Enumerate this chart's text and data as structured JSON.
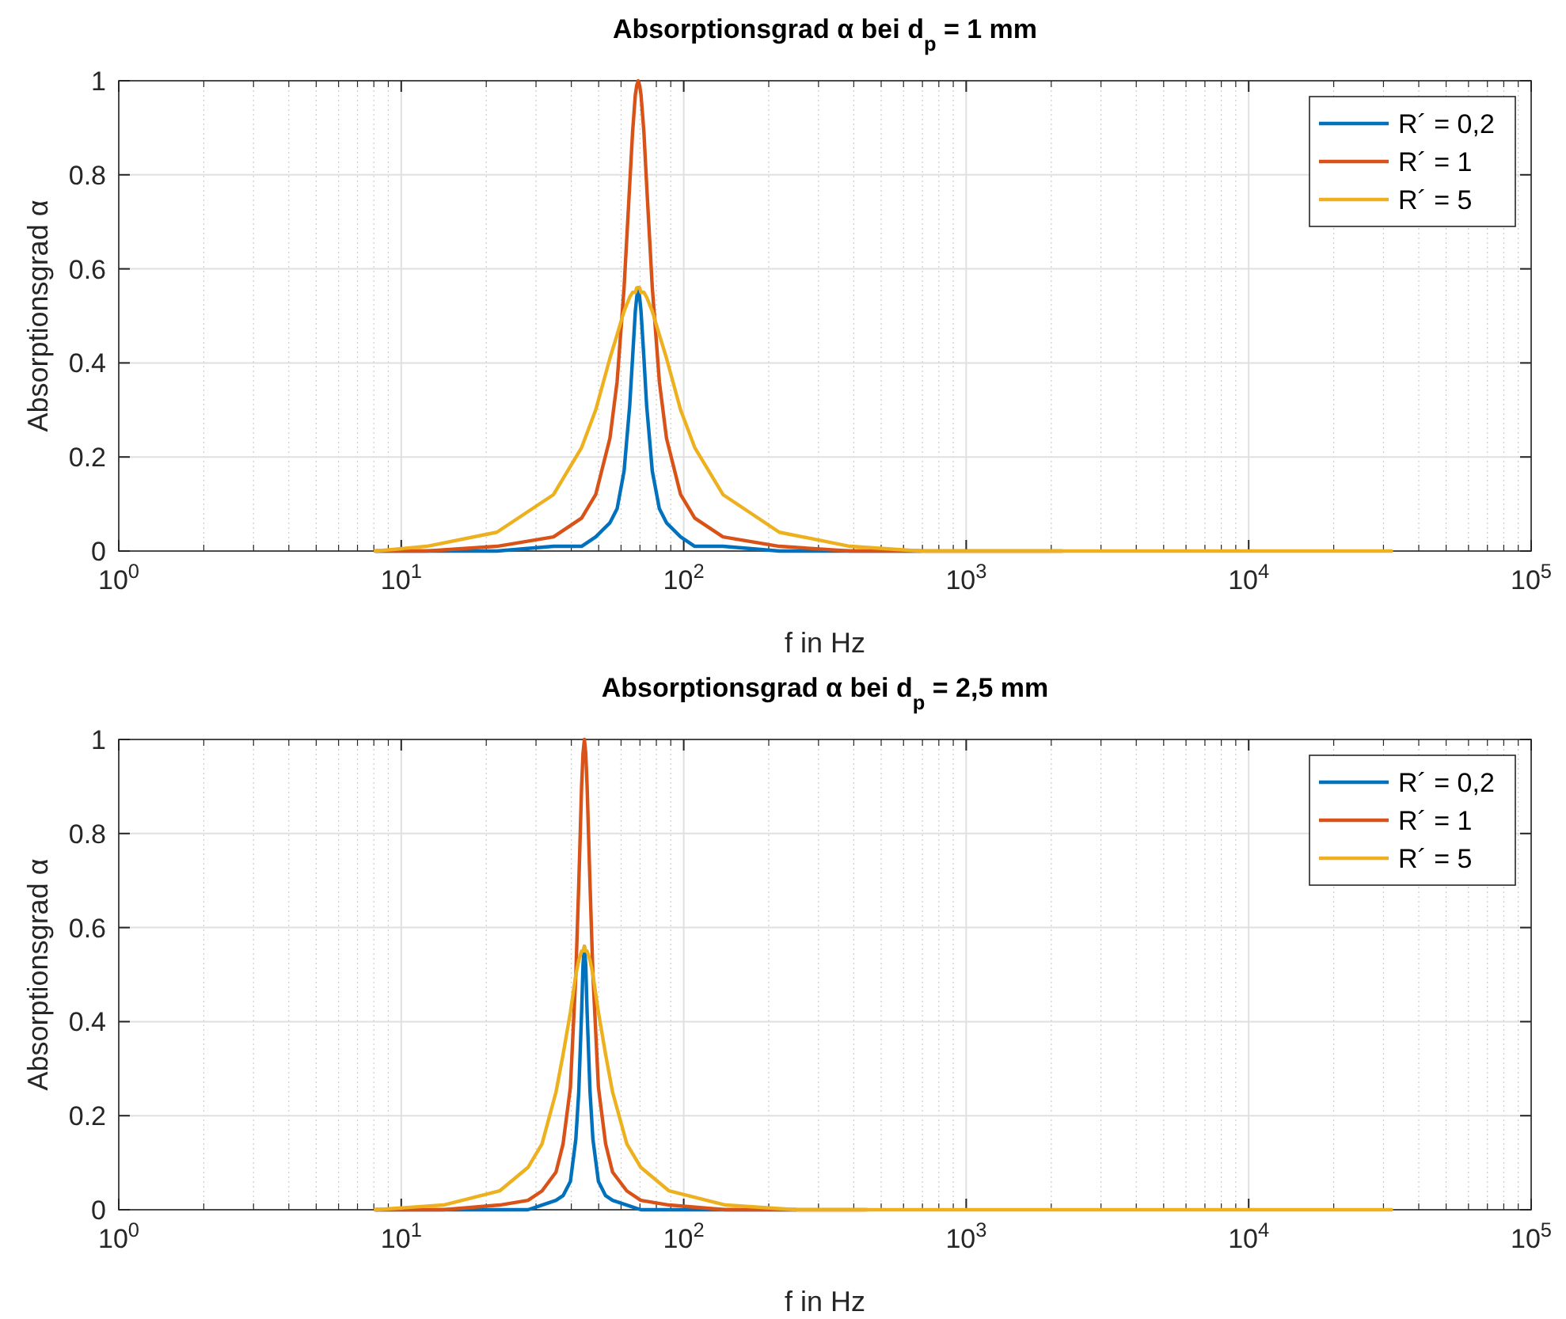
{
  "chart_data": [
    {
      "type": "line",
      "title": "Absorptionsgrad α bei d$_{p}$ = 1 mm",
      "xlabel": "f in Hz",
      "ylabel": "Absorptionsgrad α",
      "x": [
        8.1,
        12.3,
        21.8,
        34.6,
        43.5,
        48.8,
        54.8,
        58.1,
        61.5,
        64.4,
        65.9,
        67.4,
        68.2,
        69,
        69.8,
        70.6,
        72.3,
        73.9,
        77.4,
        82.0,
        86.9,
        97.5,
        109.4,
        137.7,
        218,
        388,
        690,
        2182,
        6900,
        32000
      ],
      "series": [
        {
          "name": "R´ = 0,2",
          "color": "#0072bd",
          "values": [
            0,
            0,
            0,
            0.01,
            0.01,
            0.03,
            0.06,
            0.09,
            0.17,
            0.31,
            0.41,
            0.51,
            0.54,
            0.56,
            0.54,
            0.51,
            0.41,
            0.31,
            0.17,
            0.09,
            0.06,
            0.03,
            0.01,
            0.01,
            0,
            0,
            0,
            null,
            null,
            null
          ]
        },
        {
          "name": "R´ = 1",
          "color": "#d95319",
          "values": [
            0,
            0,
            0.01,
            0.03,
            0.07,
            0.12,
            0.24,
            0.36,
            0.56,
            0.78,
            0.89,
            0.97,
            0.99,
            1,
            0.99,
            0.97,
            0.89,
            0.78,
            0.56,
            0.36,
            0.24,
            0.12,
            0.07,
            0.03,
            0.01,
            0,
            0,
            0,
            null,
            null
          ]
        },
        {
          "name": "R´ = 5",
          "color": "#edb120",
          "values": [
            0,
            0.01,
            0.04,
            0.12,
            0.22,
            0.3,
            0.41,
            0.46,
            0.51,
            0.54,
            0.55,
            0.55,
            0.56,
            0.56,
            0.56,
            0.55,
            0.55,
            0.54,
            0.51,
            0.46,
            0.41,
            0.3,
            0.22,
            0.12,
            0.04,
            0.01,
            0,
            0,
            0,
            0
          ]
        }
      ],
      "log": "x",
      "xlim": [
        1,
        100000
      ],
      "xticks": [
        {
          "value": 1,
          "label": "10$^{0}$"
        },
        {
          "value": 10,
          "label": "10$^{1}$"
        },
        {
          "value": 100,
          "label": "10$^{2}$"
        },
        {
          "value": 1000,
          "label": "10$^{3}$"
        },
        {
          "value": 10000,
          "label": "10$^{4}$"
        },
        {
          "value": 100000,
          "label": "10$^{5}$"
        }
      ],
      "ylim": [
        0,
        1
      ],
      "yticks": [
        0,
        0.2,
        0.4,
        0.6,
        0.8,
        1
      ],
      "grid": true,
      "legend": "top right",
      "line_style": "solid"
    },
    {
      "type": "line",
      "title": "Absorptionsgrad α bei d$_{p}$ = 2,5 mm",
      "xlabel": "f in Hz",
      "ylabel": "Absorptionsgrad α",
      "x": [
        8.1,
        14.1,
        22.3,
        28.1,
        31.5,
        35.3,
        37.4,
        39.7,
        41.5,
        42.5,
        43.5,
        44.0,
        44.5,
        45.0,
        45.5,
        46.6,
        47.7,
        49.9,
        52.9,
        56.0,
        62.9,
        70.5,
        88.8,
        140.7,
        250,
        445,
        1407,
        4450,
        32000
      ],
      "series": [
        {
          "name": "R´ = 0,2",
          "color": "#0072bd",
          "values": [
            0,
            0,
            0,
            0,
            0.01,
            0.02,
            0.03,
            0.06,
            0.15,
            0.25,
            0.42,
            0.52,
            0.56,
            0.52,
            0.42,
            0.25,
            0.15,
            0.06,
            0.03,
            0.02,
            0.01,
            0,
            0,
            0,
            0,
            null,
            null,
            null,
            null
          ]
        },
        {
          "name": "R´ = 1",
          "color": "#d95319",
          "values": [
            0,
            0,
            0.01,
            0.02,
            0.04,
            0.08,
            0.14,
            0.26,
            0.5,
            0.69,
            0.9,
            0.97,
            1,
            0.97,
            0.9,
            0.69,
            0.5,
            0.26,
            0.14,
            0.08,
            0.04,
            0.02,
            0.01,
            0,
            0,
            0,
            null,
            null,
            null
          ]
        },
        {
          "name": "R´ = 5",
          "color": "#edb120",
          "values": [
            0,
            0.01,
            0.04,
            0.09,
            0.14,
            0.25,
            0.33,
            0.42,
            0.5,
            0.53,
            0.55,
            0.55,
            0.56,
            0.55,
            0.55,
            0.53,
            0.5,
            0.42,
            0.33,
            0.25,
            0.14,
            0.09,
            0.04,
            0.01,
            0,
            0,
            0,
            0,
            0
          ]
        }
      ],
      "log": "x",
      "xlim": [
        1,
        100000
      ],
      "xticks": [
        {
          "value": 1,
          "label": "10$^{0}$"
        },
        {
          "value": 10,
          "label": "10$^{1}$"
        },
        {
          "value": 100,
          "label": "10$^{2}$"
        },
        {
          "value": 1000,
          "label": "10$^{3}$"
        },
        {
          "value": 10000,
          "label": "10$^{4}$"
        },
        {
          "value": 100000,
          "label": "10$^{5}$"
        }
      ],
      "ylim": [
        0,
        1
      ],
      "yticks": [
        0,
        0.2,
        0.4,
        0.6,
        0.8,
        1
      ],
      "grid": true,
      "legend": "top right",
      "line_style": "solid"
    }
  ]
}
